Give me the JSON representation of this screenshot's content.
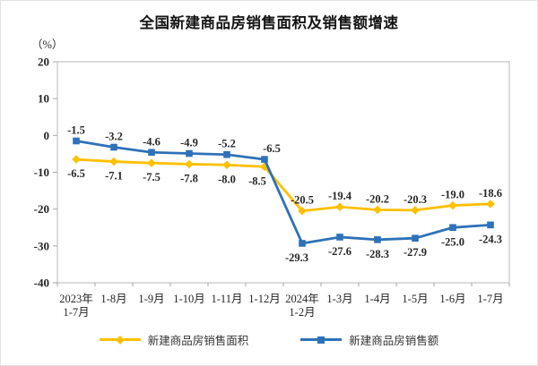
{
  "title": "全国新建商品房销售面积及销售额增速",
  "unit_label": "（%）",
  "colors": {
    "sales_area_line": "#FFC000",
    "sales_amount_line": "#2E71B8",
    "plot_border": "#C9C9C9",
    "tick": "#A6A6A6",
    "text": "#262626"
  },
  "legend": {
    "items": [
      {
        "label": "新建商品房销售面积"
      },
      {
        "label": "新建商品房销售额"
      }
    ]
  },
  "chart_data": {
    "type": "line",
    "title": "全国新建商品房销售面积及销售额增速",
    "ylabel": "（%）",
    "xlabel": "",
    "ylim": [
      -40,
      20
    ],
    "yticks": [
      20,
      10,
      0,
      -10,
      -20,
      -30,
      -40
    ],
    "grid": false,
    "legend_position": "bottom",
    "categories": [
      [
        "2023年",
        "1-7月"
      ],
      [
        "1-8月"
      ],
      [
        "1-9月"
      ],
      [
        "1-10月"
      ],
      [
        "1-11月"
      ],
      [
        "1-12月"
      ],
      [
        "2024年",
        "1-2月"
      ],
      [
        "1-3月"
      ],
      [
        "1-4月"
      ],
      [
        "1-5月"
      ],
      [
        "1-6月"
      ],
      [
        "1-7月"
      ]
    ],
    "series": [
      {
        "name": "新建商品房销售面积",
        "color": "#FFC000",
        "marker": "diamond",
        "values": [
          -6.5,
          -7.1,
          -7.5,
          -7.8,
          -8.0,
          -8.5,
          -20.5,
          -19.4,
          -20.2,
          -20.3,
          -19.0,
          -18.6
        ],
        "labels": [
          "-6.5",
          "-7.1",
          "-7.5",
          "-7.8",
          "-8.0",
          "-8.5",
          "-20.5",
          "-19.4",
          "-20.2",
          "-20.3",
          "-19.0",
          "-18.6"
        ],
        "label_positions": [
          "below",
          "below",
          "below",
          "below",
          "below",
          "below",
          "above",
          "above",
          "above",
          "above",
          "above",
          "above"
        ],
        "label_dx": [
          0,
          0,
          0,
          0,
          0,
          -8,
          0,
          0,
          0,
          0,
          0,
          0
        ]
      },
      {
        "name": "新建商品房销售额",
        "color": "#2E71B8",
        "marker": "square",
        "values": [
          -1.5,
          -3.2,
          -4.6,
          -4.9,
          -5.2,
          -6.5,
          -29.3,
          -27.6,
          -28.3,
          -27.9,
          -25.0,
          -24.3
        ],
        "labels": [
          "-1.5",
          "-3.2",
          "-4.6",
          "-4.9",
          "-5.2",
          "-6.5",
          "-29.3",
          "-27.6",
          "-28.3",
          "-27.9",
          "-25.0",
          "-24.3"
        ],
        "label_positions": [
          "above",
          "above",
          "above",
          "above",
          "above",
          "above",
          "below",
          "below",
          "below",
          "below",
          "below",
          "below"
        ],
        "label_dx": [
          0,
          0,
          0,
          0,
          0,
          8,
          -6,
          0,
          0,
          0,
          0,
          0
        ]
      }
    ]
  }
}
